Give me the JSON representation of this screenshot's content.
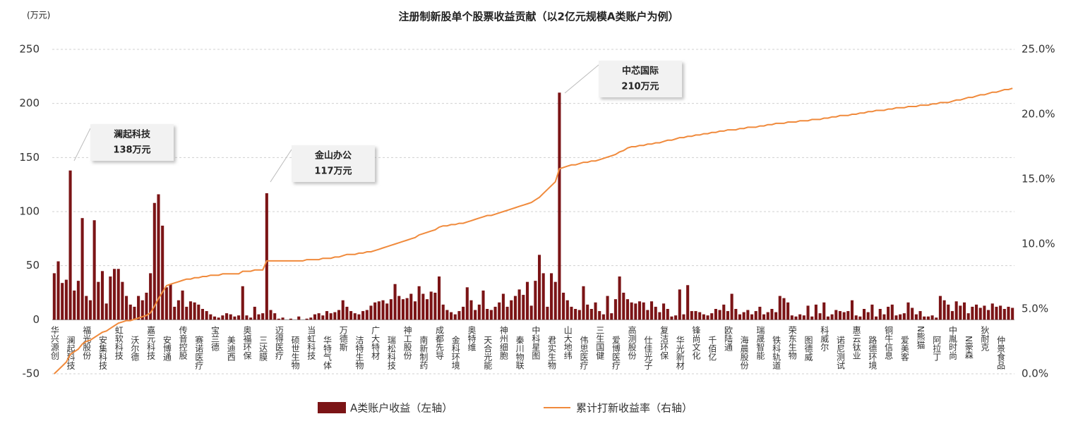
{
  "chart_data": {
    "type": "bar_line",
    "title": "注册制新股单个股票收益贡献（以2亿元规模A类账户为例）",
    "y_unit": "(万元)",
    "categories": [
      "华兴源创",
      null,
      null,
      null,
      "澜起科技",
      null,
      null,
      null,
      "福光股份",
      null,
      null,
      null,
      "安集科技",
      null,
      null,
      null,
      "虹软科技",
      null,
      null,
      null,
      "沃尔德",
      null,
      null,
      null,
      "嘉元科技",
      null,
      null,
      null,
      "安博通",
      null,
      null,
      null,
      "传音控股",
      null,
      null,
      null,
      "赛诺医疗",
      null,
      null,
      null,
      "宝兰德",
      null,
      null,
      null,
      "美迪西",
      null,
      null,
      null,
      "奥福环保",
      null,
      null,
      null,
      "三达膜",
      null,
      null,
      null,
      "迈得医疗",
      null,
      null,
      null,
      "硕世生物",
      null,
      null,
      null,
      "当虹科技",
      null,
      null,
      null,
      "华特气体",
      null,
      null,
      null,
      "万德斯",
      null,
      null,
      null,
      "洁特生物",
      null,
      null,
      null,
      "广大特材",
      null,
      null,
      null,
      "瑞松科技",
      null,
      null,
      null,
      "神工股份",
      null,
      null,
      null,
      "南新制药",
      null,
      null,
      null,
      "成都先导",
      null,
      null,
      null,
      "金科环境",
      null,
      null,
      null,
      "奥特维",
      null,
      null,
      null,
      "天合光能",
      null,
      null,
      null,
      "神州细胞",
      null,
      null,
      null,
      "秦川物联",
      null,
      null,
      null,
      "中科星图",
      null,
      null,
      null,
      "君实生物",
      null,
      null,
      null,
      "山大地纬",
      null,
      null,
      null,
      "伟思医疗",
      null,
      null,
      null,
      "三生国健",
      null,
      null,
      null,
      "爱博医疗",
      null,
      null,
      null,
      "高测股份",
      null,
      null,
      null,
      "仕佳光子",
      null,
      null,
      null,
      "复洁环保",
      null,
      null,
      null,
      "华光新材",
      null,
      null,
      null,
      "锋尚文化",
      null,
      null,
      null,
      "千佰亿",
      null,
      null,
      null,
      "欧陆通",
      null,
      null,
      null,
      "海晨股份",
      null,
      null,
      null,
      "瑞晟智能",
      null,
      null,
      null,
      "铁科轨道",
      null,
      null,
      null,
      "荣东生物",
      null,
      null,
      null,
      "图德威",
      null,
      null,
      null,
      "科威尔",
      null,
      null,
      null,
      "诺尼测试",
      null,
      null,
      null,
      "惠云钛业",
      null,
      null,
      null,
      "路德环境",
      null,
      null,
      null,
      "铜牛信息",
      null,
      null,
      null,
      "爱美客",
      null,
      null,
      null,
      "N熊猫",
      null,
      null,
      null,
      "阿拉丁",
      null,
      null,
      null,
      "中胤时尚",
      null,
      null,
      null,
      "N豪森",
      null,
      null,
      null,
      "狄耐克",
      null,
      null,
      null,
      "仲景食品",
      null,
      null,
      null
    ],
    "series": [
      {
        "name": "A类账户收益（左轴）",
        "color": "#7b1416",
        "values": [
          43,
          54,
          34,
          37,
          138,
          27,
          36,
          94,
          22,
          18,
          92,
          35,
          45,
          15,
          40,
          47,
          47,
          35,
          22,
          14,
          12,
          22,
          18,
          25,
          43,
          108,
          116,
          87,
          30,
          33,
          12,
          18,
          27,
          12,
          17,
          16,
          14,
          10,
          8,
          5,
          3,
          2,
          4,
          6,
          5,
          3,
          4,
          31,
          4,
          2,
          12,
          5,
          6,
          117,
          9,
          6,
          1,
          2,
          0,
          1,
          0,
          3,
          0,
          1,
          2,
          5,
          6,
          4,
          8,
          6,
          7,
          9,
          18,
          12,
          8,
          6,
          5,
          8,
          9,
          13,
          16,
          17,
          18,
          15,
          19,
          33,
          22,
          19,
          20,
          24,
          17,
          31,
          24,
          19,
          26,
          25,
          40,
          14,
          9,
          7,
          5,
          8,
          12,
          30,
          18,
          9,
          14,
          27,
          10,
          9,
          12,
          16,
          24,
          12,
          18,
          22,
          28,
          23,
          35,
          13,
          36,
          60,
          43,
          12,
          43,
          35,
          210,
          25,
          18,
          12,
          10,
          9,
          31,
          14,
          10,
          16,
          8,
          5,
          22,
          6,
          19,
          40,
          25,
          19,
          16,
          15,
          17,
          16,
          9,
          17,
          12,
          7,
          15,
          10,
          3,
          4,
          28,
          5,
          32,
          8,
          8,
          7,
          5,
          4,
          6,
          10,
          9,
          14,
          8,
          24,
          10,
          5,
          7,
          9,
          5,
          8,
          12,
          5,
          7,
          10,
          7,
          22,
          20,
          16,
          4,
          3,
          5,
          4,
          13,
          3,
          14,
          6,
          16,
          3,
          5,
          9,
          8,
          7,
          8,
          18,
          4,
          3,
          10,
          7,
          14,
          3,
          10,
          5,
          12,
          14,
          4,
          5,
          6,
          16,
          11,
          5,
          8,
          3,
          3,
          4,
          2,
          22,
          18,
          14,
          8,
          17,
          13,
          16,
          6,
          12,
          14,
          11,
          13,
          9,
          15,
          12,
          13,
          10,
          12,
          11
        ]
      },
      {
        "name": "累计打新收益率（右轴）",
        "color": "#f08a3c",
        "axis": "y2",
        "values": [
          0.0,
          0.3,
          0.6,
          0.9,
          1.5,
          1.7,
          1.9,
          2.3,
          2.5,
          2.6,
          2.8,
          3.0,
          3.2,
          3.3,
          3.5,
          3.7,
          3.9,
          4.0,
          4.1,
          4.1,
          4.2,
          4.3,
          4.4,
          4.5,
          4.7,
          5.2,
          5.8,
          6.3,
          6.8,
          6.9,
          7.0,
          7.1,
          7.2,
          7.3,
          7.3,
          7.4,
          7.4,
          7.5,
          7.5,
          7.6,
          7.6,
          7.6,
          7.7,
          7.7,
          7.7,
          7.7,
          7.7,
          7.9,
          7.9,
          7.9,
          8.0,
          8.0,
          8.0,
          8.7,
          8.7,
          8.7,
          8.7,
          8.7,
          8.7,
          8.7,
          8.7,
          8.7,
          8.7,
          8.8,
          8.8,
          8.8,
          8.8,
          8.9,
          8.9,
          8.9,
          9.0,
          9.0,
          9.1,
          9.2,
          9.2,
          9.2,
          9.3,
          9.3,
          9.4,
          9.4,
          9.5,
          9.6,
          9.7,
          9.8,
          9.9,
          10.0,
          10.1,
          10.2,
          10.3,
          10.4,
          10.5,
          10.7,
          10.8,
          10.9,
          11.0,
          11.1,
          11.3,
          11.4,
          11.4,
          11.5,
          11.5,
          11.6,
          11.6,
          11.7,
          11.8,
          11.9,
          12.0,
          12.1,
          12.2,
          12.2,
          12.3,
          12.4,
          12.5,
          12.6,
          12.7,
          12.8,
          12.9,
          13.0,
          13.1,
          13.2,
          13.4,
          13.6,
          13.9,
          14.2,
          14.5,
          14.8,
          15.8,
          15.9,
          16.0,
          16.1,
          16.1,
          16.2,
          16.3,
          16.3,
          16.4,
          16.4,
          16.5,
          16.6,
          16.7,
          16.8,
          16.9,
          17.1,
          17.2,
          17.4,
          17.5,
          17.5,
          17.6,
          17.6,
          17.7,
          17.7,
          17.8,
          17.8,
          17.9,
          18.0,
          18.0,
          18.1,
          18.2,
          18.2,
          18.3,
          18.3,
          18.4,
          18.4,
          18.5,
          18.5,
          18.6,
          18.6,
          18.7,
          18.7,
          18.8,
          18.8,
          18.8,
          18.9,
          18.9,
          19.0,
          19.0,
          19.0,
          19.1,
          19.1,
          19.2,
          19.2,
          19.3,
          19.3,
          19.3,
          19.4,
          19.4,
          19.4,
          19.5,
          19.5,
          19.5,
          19.6,
          19.6,
          19.6,
          19.7,
          19.7,
          19.8,
          19.8,
          19.9,
          19.9,
          19.9,
          20.0,
          20.0,
          20.1,
          20.1,
          20.2,
          20.2,
          20.3,
          20.3,
          20.3,
          20.4,
          20.4,
          20.5,
          20.5,
          20.5,
          20.6,
          20.6,
          20.6,
          20.7,
          20.7,
          20.7,
          20.8,
          20.8,
          20.9,
          20.9,
          20.9,
          21.0,
          21.1,
          21.1,
          21.2,
          21.3,
          21.3,
          21.4,
          21.5,
          21.5,
          21.6,
          21.7,
          21.7,
          21.8,
          21.9,
          21.9,
          22.0
        ]
      }
    ],
    "ylim": [
      -50,
      250
    ],
    "yticks": [
      -50,
      0,
      50,
      100,
      150,
      200,
      250
    ],
    "y2lim": [
      0,
      25
    ],
    "y2ticks": [
      {
        "value": 0,
        "label": "0.0%"
      },
      {
        "value": 5,
        "label": "5.0%"
      },
      {
        "value": 10,
        "label": "10.0%"
      },
      {
        "value": 15,
        "label": "15.0%"
      },
      {
        "value": 20,
        "label": "20.0%"
      },
      {
        "value": 25,
        "label": "25.0%"
      }
    ],
    "grid": true,
    "annotations": [
      {
        "lines": [
          "澜起科技",
          "138万元"
        ]
      },
      {
        "lines": [
          "金山办公",
          "117万元"
        ]
      },
      {
        "lines": [
          "中芯国际",
          "210万元"
        ]
      }
    ]
  }
}
